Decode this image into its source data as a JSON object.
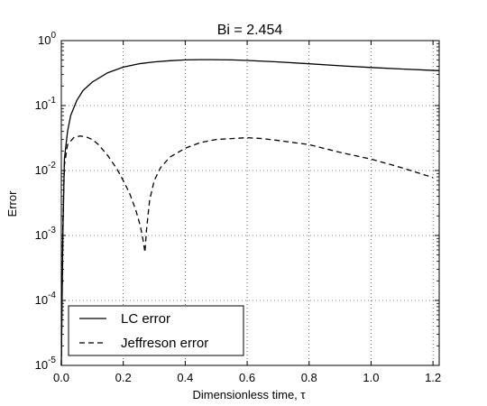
{
  "chart_data": {
    "type": "line",
    "title": "Bi =  2.454",
    "xlabel": "Dimensionless time, τ",
    "ylabel": "Error",
    "xlim": [
      0,
      1.22
    ],
    "ylim": [
      1e-05,
      1
    ],
    "yscale": "log",
    "grid": true,
    "legend_position": "lower-left",
    "x_ticks": [
      0.0,
      0.2,
      0.4,
      0.6,
      0.8,
      1.0,
      1.2
    ],
    "x_tick_labels": [
      "0.0",
      "0.2",
      "0.4",
      "0.6",
      "0.8",
      "1.0",
      "1.2"
    ],
    "y_ticks": [
      1e-05,
      0.0001,
      0.001,
      0.01,
      0.1,
      1
    ],
    "y_tick_labels": [
      {
        "base": "10",
        "exp": "-5"
      },
      {
        "base": "10",
        "exp": "-4"
      },
      {
        "base": "10",
        "exp": "-3"
      },
      {
        "base": "10",
        "exp": "-2"
      },
      {
        "base": "10",
        "exp": "-1"
      },
      {
        "base": "10",
        "exp": "0"
      }
    ],
    "series": [
      {
        "name": "LC error",
        "style": "solid",
        "color": "#000000",
        "x": [
          0.0,
          0.005,
          0.01,
          0.02,
          0.03,
          0.05,
          0.07,
          0.1,
          0.15,
          0.2,
          0.25,
          0.3,
          0.35,
          0.4,
          0.45,
          0.48,
          0.55,
          0.6,
          0.7,
          0.8,
          0.9,
          1.0,
          1.1,
          1.22
        ],
        "y": [
          1e-05,
          0.001,
          0.015,
          0.04,
          0.07,
          0.12,
          0.17,
          0.23,
          0.32,
          0.39,
          0.44,
          0.47,
          0.49,
          0.505,
          0.51,
          0.51,
          0.505,
          0.495,
          0.47,
          0.44,
          0.41,
          0.385,
          0.365,
          0.345
        ]
      },
      {
        "name": "Jeffreson error",
        "style": "dashed",
        "color": "#000000",
        "x": [
          0.0,
          0.005,
          0.01,
          0.02,
          0.04,
          0.06,
          0.08,
          0.1,
          0.12,
          0.15,
          0.18,
          0.2,
          0.22,
          0.24,
          0.255,
          0.265,
          0.27,
          0.275,
          0.285,
          0.3,
          0.32,
          0.35,
          0.4,
          0.45,
          0.5,
          0.55,
          0.6,
          0.65,
          0.7,
          0.8,
          0.9,
          1.0,
          1.1,
          1.2
        ],
        "y": [
          1e-05,
          0.0015,
          0.012,
          0.025,
          0.032,
          0.034,
          0.033,
          0.03,
          0.025,
          0.017,
          0.0105,
          0.007,
          0.0045,
          0.0025,
          0.0014,
          0.0008,
          0.00055,
          0.0012,
          0.0035,
          0.007,
          0.011,
          0.016,
          0.022,
          0.027,
          0.03,
          0.031,
          0.032,
          0.031,
          0.029,
          0.025,
          0.019,
          0.015,
          0.011,
          0.0078
        ]
      }
    ]
  }
}
